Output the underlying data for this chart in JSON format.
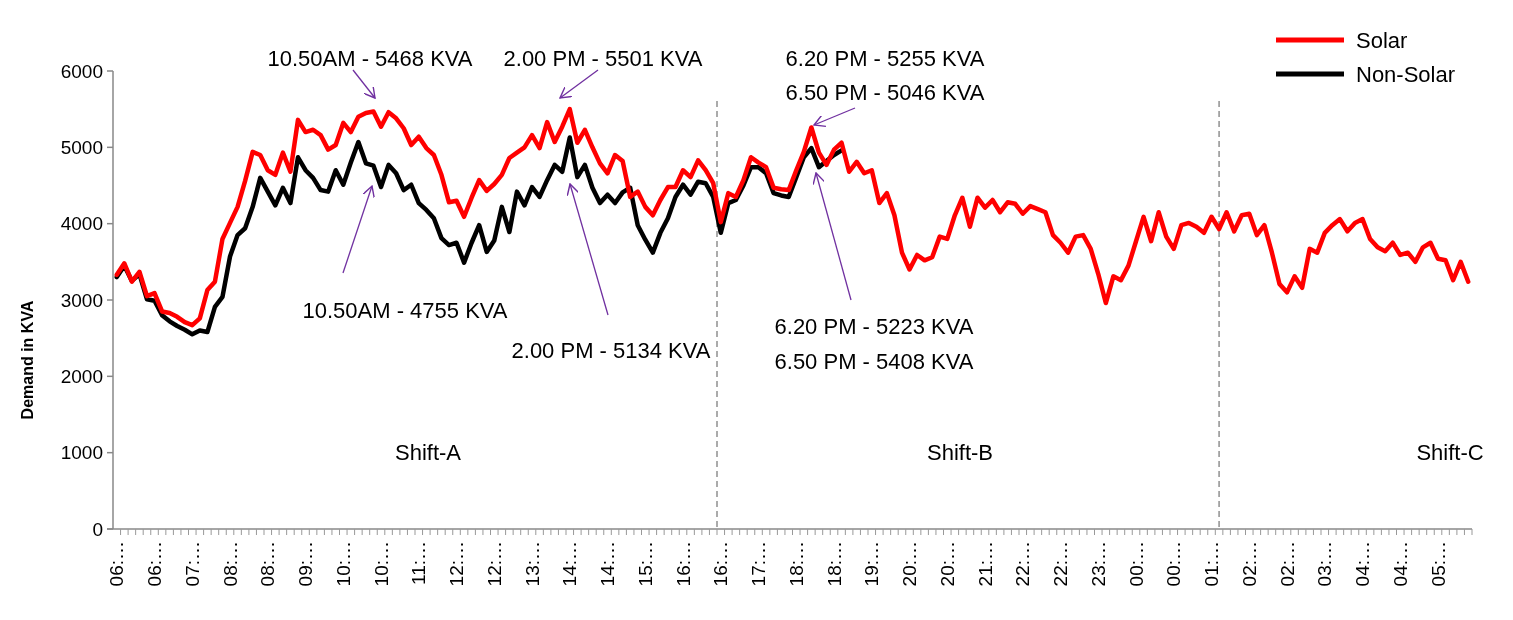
{
  "chart_data": {
    "type": "line",
    "ylabel": "Demand in KVA",
    "ylim": [
      0,
      6000
    ],
    "yticks": [
      0,
      1000,
      2000,
      3000,
      4000,
      5000,
      6000
    ],
    "categories": [
      "06:…",
      null,
      null,
      null,
      null,
      "06:…",
      null,
      null,
      null,
      null,
      "07:…",
      null,
      null,
      null,
      null,
      "08:…",
      null,
      null,
      null,
      null,
      "08:…",
      null,
      null,
      null,
      null,
      "09:…",
      null,
      null,
      null,
      null,
      "10:…",
      null,
      null,
      null,
      null,
      "10:…",
      null,
      null,
      null,
      null,
      "11:…",
      null,
      null,
      null,
      null,
      "12:…",
      null,
      null,
      null,
      null,
      "12:…",
      null,
      null,
      null,
      null,
      "13:…",
      null,
      null,
      null,
      null,
      "14:…",
      null,
      null,
      null,
      null,
      "14:…",
      null,
      null,
      null,
      null,
      "15:…",
      null,
      null,
      null,
      null,
      "16:…",
      null,
      null,
      null,
      null,
      "16:…",
      null,
      null,
      null,
      null,
      "17:…",
      null,
      null,
      null,
      null,
      "18:…",
      null,
      null,
      null,
      null,
      "18:…",
      null,
      null,
      null,
      null,
      "19:…",
      null,
      null,
      null,
      null,
      "20:…",
      null,
      null,
      null,
      null,
      "20:…",
      null,
      null,
      null,
      null,
      "21:…",
      null,
      null,
      null,
      null,
      "22:…",
      null,
      null,
      null,
      null,
      "22:…",
      null,
      null,
      null,
      null,
      "23:…",
      null,
      null,
      null,
      null,
      "00:…",
      null,
      null,
      null,
      null,
      "00:…",
      null,
      null,
      null,
      null,
      "01:…",
      null,
      null,
      null,
      null,
      "02:…",
      null,
      null,
      null,
      null,
      "02:…",
      null,
      null,
      null,
      null,
      "03:…",
      null,
      null,
      null,
      null,
      "04:…",
      null,
      null,
      null,
      null,
      "04:…",
      null,
      null,
      null,
      null,
      "05:…",
      null,
      null,
      null,
      null
    ],
    "series": [
      {
        "name": "Non-Solar",
        "color": "#000000",
        "values": [
          3300,
          3450,
          3250,
          3340,
          3010,
          2990,
          2800,
          2720,
          2660,
          2610,
          2550,
          2600,
          2580,
          2910,
          3040,
          3570,
          3850,
          3940,
          4220,
          4600,
          4420,
          4240,
          4470,
          4270,
          4870,
          4700,
          4600,
          4440,
          4420,
          4700,
          4510,
          4800,
          5070,
          4790,
          4760,
          4480,
          4770,
          4660,
          4440,
          4510,
          4270,
          4180,
          4070,
          3810,
          3720,
          3750,
          3490,
          3750,
          3980,
          3630,
          3780,
          4220,
          3890,
          4420,
          4240,
          4480,
          4350,
          4570,
          4770,
          4680,
          5130,
          4610,
          4770,
          4470,
          4270,
          4380,
          4270,
          4410,
          4470,
          3980,
          3790,
          3620,
          3880,
          4070,
          4350,
          4510,
          4380,
          4550,
          4530,
          4350,
          3880,
          4270,
          4310,
          4500,
          4740,
          4740,
          4660,
          4400,
          4370,
          4350,
          4610,
          4870,
          4990,
          4740,
          4820,
          4900,
          4960,
          null,
          null,
          null,
          null,
          null,
          null,
          null,
          null,
          null,
          null,
          null,
          null,
          null,
          null,
          null,
          null,
          null,
          null,
          null,
          null,
          null,
          null,
          null,
          null,
          null,
          null,
          null,
          null,
          null,
          null,
          null,
          null,
          null,
          null,
          null,
          null,
          null,
          null,
          null,
          null,
          null,
          null,
          null,
          null,
          null,
          null,
          null,
          null,
          null,
          null,
          null,
          null,
          null,
          null,
          null,
          null,
          null,
          null,
          null,
          null,
          null,
          null,
          null,
          null,
          null,
          null,
          null,
          null,
          null,
          null,
          null,
          null,
          null,
          null,
          null,
          null,
          null,
          null,
          null,
          null,
          null,
          null,
          null
        ]
      },
      {
        "name": "Solar",
        "color": "#ff0000",
        "values": [
          3330,
          3480,
          3240,
          3370,
          3050,
          3090,
          2850,
          2830,
          2780,
          2710,
          2670,
          2760,
          3130,
          3240,
          3800,
          4010,
          4220,
          4560,
          4940,
          4900,
          4700,
          4640,
          4930,
          4680,
          5360,
          5200,
          5230,
          5160,
          4970,
          5030,
          5320,
          5200,
          5400,
          5450,
          5470,
          5270,
          5460,
          5380,
          5250,
          5030,
          5140,
          4990,
          4900,
          4640,
          4280,
          4300,
          4090,
          4340,
          4570,
          4430,
          4520,
          4640,
          4860,
          4930,
          5000,
          5160,
          4990,
          5330,
          5070,
          5270,
          5500,
          5060,
          5230,
          5000,
          4790,
          4660,
          4900,
          4820,
          4350,
          4420,
          4220,
          4110,
          4310,
          4480,
          4480,
          4700,
          4610,
          4830,
          4700,
          4530,
          4020,
          4400,
          4350,
          4570,
          4870,
          4800,
          4740,
          4470,
          4450,
          4440,
          4700,
          4940,
          5260,
          4930,
          4770,
          4970,
          5060,
          4680,
          4810,
          4660,
          4700,
          4270,
          4400,
          4110,
          3620,
          3400,
          3590,
          3520,
          3560,
          3830,
          3800,
          4110,
          4340,
          3960,
          4340,
          4210,
          4310,
          4150,
          4280,
          4260,
          4130,
          4230,
          4190,
          4150,
          3850,
          3750,
          3620,
          3830,
          3850,
          3670,
          3340,
          2960,
          3310,
          3260,
          3450,
          3770,
          4090,
          3770,
          4150,
          3830,
          3670,
          3980,
          4010,
          3960,
          3880,
          4090,
          3930,
          4150,
          3900,
          4110,
          4130,
          3850,
          3980,
          3620,
          3210,
          3100,
          3310,
          3160,
          3670,
          3620,
          3880,
          3980,
          4060,
          3900,
          4010,
          4060,
          3800,
          3690,
          3640,
          3750,
          3590,
          3620,
          3500,
          3690,
          3750,
          3540,
          3520,
          3260,
          3500,
          3240
        ]
      }
    ],
    "annotations": [
      "10.50AM - 5468 KVA",
      "10.50AM - 4755 KVA",
      "2.00 PM - 5501 KVA",
      "2.00 PM - 5134 KVA",
      "6.20 PM - 5255 KVA",
      "6.50 PM - 5046 KVA",
      "6.20 PM - 5223 KVA",
      "6.50 PM - 5408 KVA",
      "Shift-A",
      "Shift-B",
      "Shift-C"
    ],
    "legend": "top right",
    "grid": false,
    "marker": "none",
    "line_style": "solid"
  }
}
